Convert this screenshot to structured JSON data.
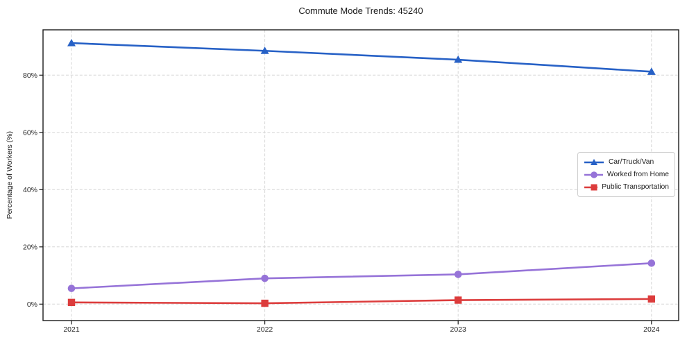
{
  "title": "Commute Mode Trends: 45240",
  "chart_data": {
    "type": "line",
    "title": "Commute Mode Trends: 45240",
    "xlabel": "",
    "ylabel": "Percentage of Workers (%)",
    "categories": [
      "2021",
      "2022",
      "2023",
      "2024"
    ],
    "series": [
      {
        "name": "Car/Truck/Van",
        "values": [
          91.2,
          88.5,
          85.4,
          81.2
        ],
        "color": "#2761c6",
        "marker": "triangle"
      },
      {
        "name": "Worked from Home",
        "values": [
          5.5,
          9.0,
          10.4,
          14.3
        ],
        "color": "#9673d8",
        "marker": "circle"
      },
      {
        "name": "Public Transportation",
        "values": [
          0.6,
          0.3,
          1.4,
          1.8
        ],
        "color": "#dc3c3c",
        "marker": "square"
      }
    ],
    "yticks": [
      0,
      20,
      40,
      60,
      80
    ],
    "ytick_labels": [
      "0%",
      "20%",
      "40%",
      "60%",
      "80%"
    ],
    "ylim": [
      -5.7,
      96.1
    ],
    "grid": true,
    "grid_style": "dashed",
    "legend_position": "center right",
    "colors": {
      "grid": "#d6d6d6",
      "spine": "#1a1a1a",
      "tick_label": "#262626",
      "background": "#ffffff"
    }
  }
}
